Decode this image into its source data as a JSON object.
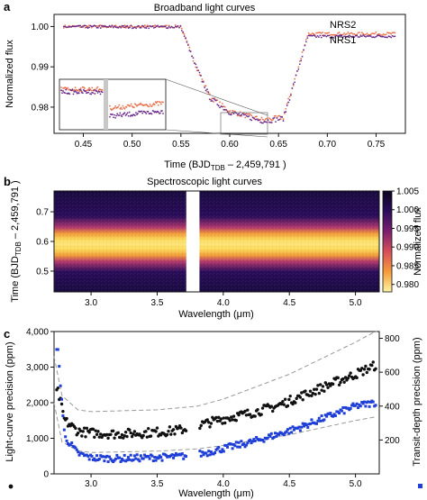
{
  "chart_data": [
    {
      "panel_label": "a",
      "type": "line",
      "title": "Broadband light curves",
      "xlabel_main": "Time (BJD",
      "xlabel_sub": "TDB",
      "xlabel_rest": " – 2,459,791 )",
      "ylabel": "Normalized flux",
      "xlim": [
        0.42,
        0.78
      ],
      "ylim": [
        0.9735,
        1.003
      ],
      "xticks": [
        "0.45",
        "0.50",
        "0.55",
        "0.60",
        "0.65",
        "0.70",
        "0.75"
      ],
      "yticks": [
        "0.98",
        "0.99",
        "1.00"
      ],
      "series": [
        {
          "name": "NRS2",
          "color": "#e8704a",
          "x": [
            0.43,
            0.55,
            0.565,
            0.58,
            0.6,
            0.62,
            0.635,
            0.655,
            0.67,
            0.68,
            0.77
          ],
          "y": [
            1.0,
            1.0,
            0.9905,
            0.9825,
            0.979,
            0.9777,
            0.9768,
            0.9775,
            0.9895,
            0.9982,
            0.9982
          ]
        },
        {
          "name": "NRS1",
          "color": "#6a2a8c",
          "x": [
            0.43,
            0.55,
            0.565,
            0.58,
            0.6,
            0.62,
            0.635,
            0.655,
            0.67,
            0.68,
            0.77
          ],
          "y": [
            0.9999,
            0.9999,
            0.9903,
            0.9822,
            0.9787,
            0.9774,
            0.9765,
            0.9772,
            0.9892,
            0.9975,
            0.9976
          ]
        }
      ],
      "inset": "zoom of 0.60–0.66 transit bottom"
    },
    {
      "panel_label": "b",
      "type": "heatmap",
      "title": "Spectroscopic light curves",
      "xlabel": "Wavelength (μm)",
      "ylabel_main": "Time (BJD",
      "ylabel_sub": "TDB",
      "ylabel_rest": " – 2,459,791 )",
      "xlim": [
        2.72,
        5.18
      ],
      "ylim": [
        0.43,
        0.77
      ],
      "xticks": [
        "3.0",
        "3.5",
        "4.0",
        "4.5",
        "5.0"
      ],
      "yticks": [
        "0.5",
        "0.6",
        "0.7"
      ],
      "transit_window": [
        0.555,
        0.675
      ],
      "gap_um": [
        3.72,
        3.82
      ],
      "colorbar_label": "Normalized flux",
      "colorbar_ticks": [
        "1.005",
        "1.000",
        "0.995",
        "0.990",
        "0.985",
        "0.980"
      ],
      "colorbar_range": [
        0.978,
        1.005
      ]
    },
    {
      "panel_label": "c",
      "type": "scatter",
      "xlabel": "Wavelength (μm)",
      "ylabel_left": "Light-curve precision (ppm)",
      "ylabel_right": "Transit-depth precision (ppm)",
      "xlim": [
        2.72,
        5.18
      ],
      "ylim_left": [
        0,
        4000
      ],
      "ylim_right": [
        0,
        840
      ],
      "xticks": [
        "3.0",
        "3.5",
        "4.0",
        "4.5",
        "5.0"
      ],
      "yticks_left": [
        "0",
        "1,000",
        "2,000",
        "3,000",
        "4,000"
      ],
      "yticks_right": [
        "200",
        "400",
        "600",
        "800"
      ],
      "series": [
        {
          "name": "Light-curve precision",
          "color": "#111111",
          "x": [
            2.75,
            2.8,
            2.9,
            3.0,
            3.2,
            3.4,
            3.6,
            3.7,
            3.85,
            4.0,
            4.2,
            4.4,
            4.6,
            4.8,
            5.0,
            5.15
          ],
          "y": [
            2300,
            1500,
            1200,
            1150,
            1120,
            1150,
            1200,
            1250,
            1400,
            1550,
            1700,
            1900,
            2200,
            2500,
            2800,
            3050
          ]
        },
        {
          "name": "Transit-depth precision",
          "color": "#1f3fd6",
          "x": [
            2.75,
            2.8,
            2.9,
            3.0,
            3.2,
            3.4,
            3.6,
            3.7,
            3.85,
            4.0,
            4.2,
            4.4,
            4.6,
            4.8,
            5.0,
            5.15
          ],
          "y": [
            720,
            220,
            120,
            95,
            90,
            95,
            100,
            105,
            120,
            150,
            185,
            230,
            280,
            340,
            400,
            420
          ]
        },
        {
          "name": "Upper envelope",
          "color": "#999999",
          "x": [
            2.72,
            2.78,
            2.9,
            3.0,
            3.5,
            3.8,
            4.0,
            4.5,
            5.0,
            5.15
          ],
          "y": [
            3300,
            2200,
            1800,
            1750,
            1800,
            1900,
            2100,
            2800,
            3700,
            4000
          ]
        },
        {
          "name": "Lower envelope",
          "color": "#999999",
          "x": [
            2.72,
            2.78,
            2.9,
            3.0,
            3.5,
            3.8,
            4.0,
            4.5,
            5.0,
            5.15
          ],
          "y": [
            2000,
            900,
            650,
            600,
            640,
            700,
            800,
            1100,
            1500,
            1600
          ]
        }
      ]
    }
  ]
}
